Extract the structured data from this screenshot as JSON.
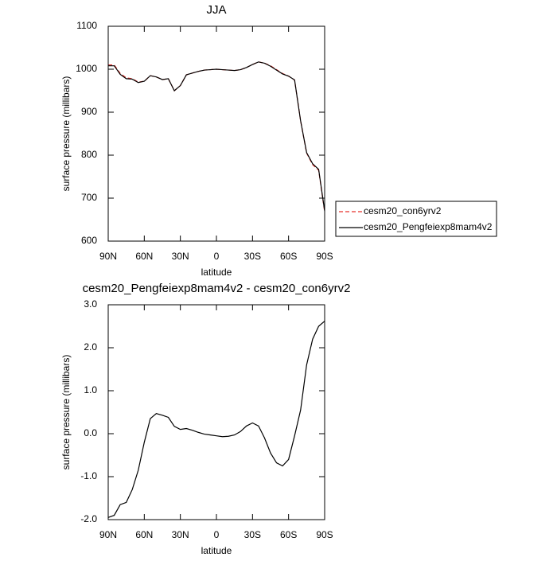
{
  "chart_data": [
    {
      "type": "line",
      "title": "JJA",
      "x_label": "latitude",
      "y_label": "surface pressure (millibars)",
      "x": [
        90,
        85,
        80,
        75,
        70,
        65,
        60,
        55,
        50,
        45,
        40,
        35,
        30,
        25,
        20,
        15,
        10,
        5,
        0,
        -5,
        -10,
        -15,
        -20,
        -25,
        -30,
        -35,
        -40,
        -45,
        -50,
        -55,
        -60,
        -65,
        -70,
        -75,
        -80,
        -85,
        -90
      ],
      "series": [
        {
          "name": "cesm20_con6yrv2",
          "color": "#e8302a",
          "dashed": true,
          "values": [
            1010,
            1010,
            990,
            980,
            978,
            970,
            972,
            985,
            982,
            976,
            978,
            950,
            962,
            987,
            991,
            995,
            998,
            999,
            1000,
            999,
            998,
            997,
            999,
            1004,
            1011,
            1017,
            1014,
            1008,
            999,
            990,
            984,
            975,
            880,
            805,
            778,
            765,
            668
          ]
        },
        {
          "name": "cesm20_Pengfeiexp8mam4v2",
          "color": "#000000",
          "dashed": false,
          "values": [
            1008,
            1008,
            988,
            978,
            977,
            969,
            972,
            985,
            982,
            976,
            978,
            950,
            962,
            987,
            991,
            995,
            998,
            999,
            1000,
            999,
            998,
            997,
            999,
            1004,
            1011,
            1017,
            1014,
            1007,
            998,
            989,
            984,
            975,
            880,
            806,
            780,
            767,
            670
          ]
        }
      ],
      "xlim": [
        90,
        -90
      ],
      "ylim": [
        600,
        1100
      ],
      "xticks": [
        {
          "value": 90,
          "label": "90N"
        },
        {
          "value": 60,
          "label": "60N"
        },
        {
          "value": 30,
          "label": "30N"
        },
        0,
        {
          "value": -30,
          "label": "30S"
        },
        {
          "value": -60,
          "label": "60S"
        },
        {
          "value": -90,
          "label": "90S"
        }
      ],
      "yticks": [
        600,
        700,
        800,
        900,
        1000,
        1100
      ]
    },
    {
      "type": "line",
      "title": "cesm20_Pengfeiexp8mam4v2 - cesm20_con6yrv2",
      "x_label": "latitude",
      "y_label": "surface pressure (millibars)",
      "x": [
        90,
        85,
        80,
        75,
        70,
        65,
        60,
        55,
        50,
        45,
        40,
        35,
        30,
        25,
        20,
        15,
        10,
        5,
        0,
        -5,
        -10,
        -15,
        -20,
        -25,
        -30,
        -35,
        -40,
        -45,
        -50,
        -55,
        -60,
        -65,
        -70,
        -75,
        -80,
        -85,
        -90
      ],
      "series": [
        {
          "color": "#000000",
          "values": [
            -1.95,
            -1.9,
            -1.65,
            -1.6,
            -1.3,
            -0.85,
            -0.2,
            0.35,
            0.47,
            0.43,
            0.38,
            0.17,
            0.1,
            0.12,
            0.08,
            0.03,
            -0.01,
            -0.03,
            -0.05,
            -0.07,
            -0.06,
            -0.03,
            0.05,
            0.18,
            0.25,
            0.18,
            -0.1,
            -0.45,
            -0.68,
            -0.75,
            -0.6,
            -0.05,
            0.55,
            1.6,
            2.2,
            2.5,
            2.62
          ]
        }
      ],
      "xlim": [
        90,
        -90
      ],
      "ylim": [
        -2,
        3
      ],
      "xticks": [
        {
          "value": 90,
          "label": "90N"
        },
        {
          "value": 60,
          "label": "60N"
        },
        {
          "value": 30,
          "label": "30N"
        },
        0,
        {
          "value": -30,
          "label": "30S"
        },
        {
          "value": -60,
          "label": "60S"
        },
        {
          "value": -90,
          "label": "90S"
        }
      ],
      "yticks": [
        {
          "value": -2,
          "label": "-2.0"
        },
        {
          "value": -1,
          "label": "-1.0"
        },
        {
          "value": 0,
          "label": "0.0"
        },
        {
          "value": 1,
          "label": "1.0"
        },
        {
          "value": 2,
          "label": "2.0"
        },
        {
          "value": 3,
          "label": "3.0"
        }
      ]
    }
  ]
}
